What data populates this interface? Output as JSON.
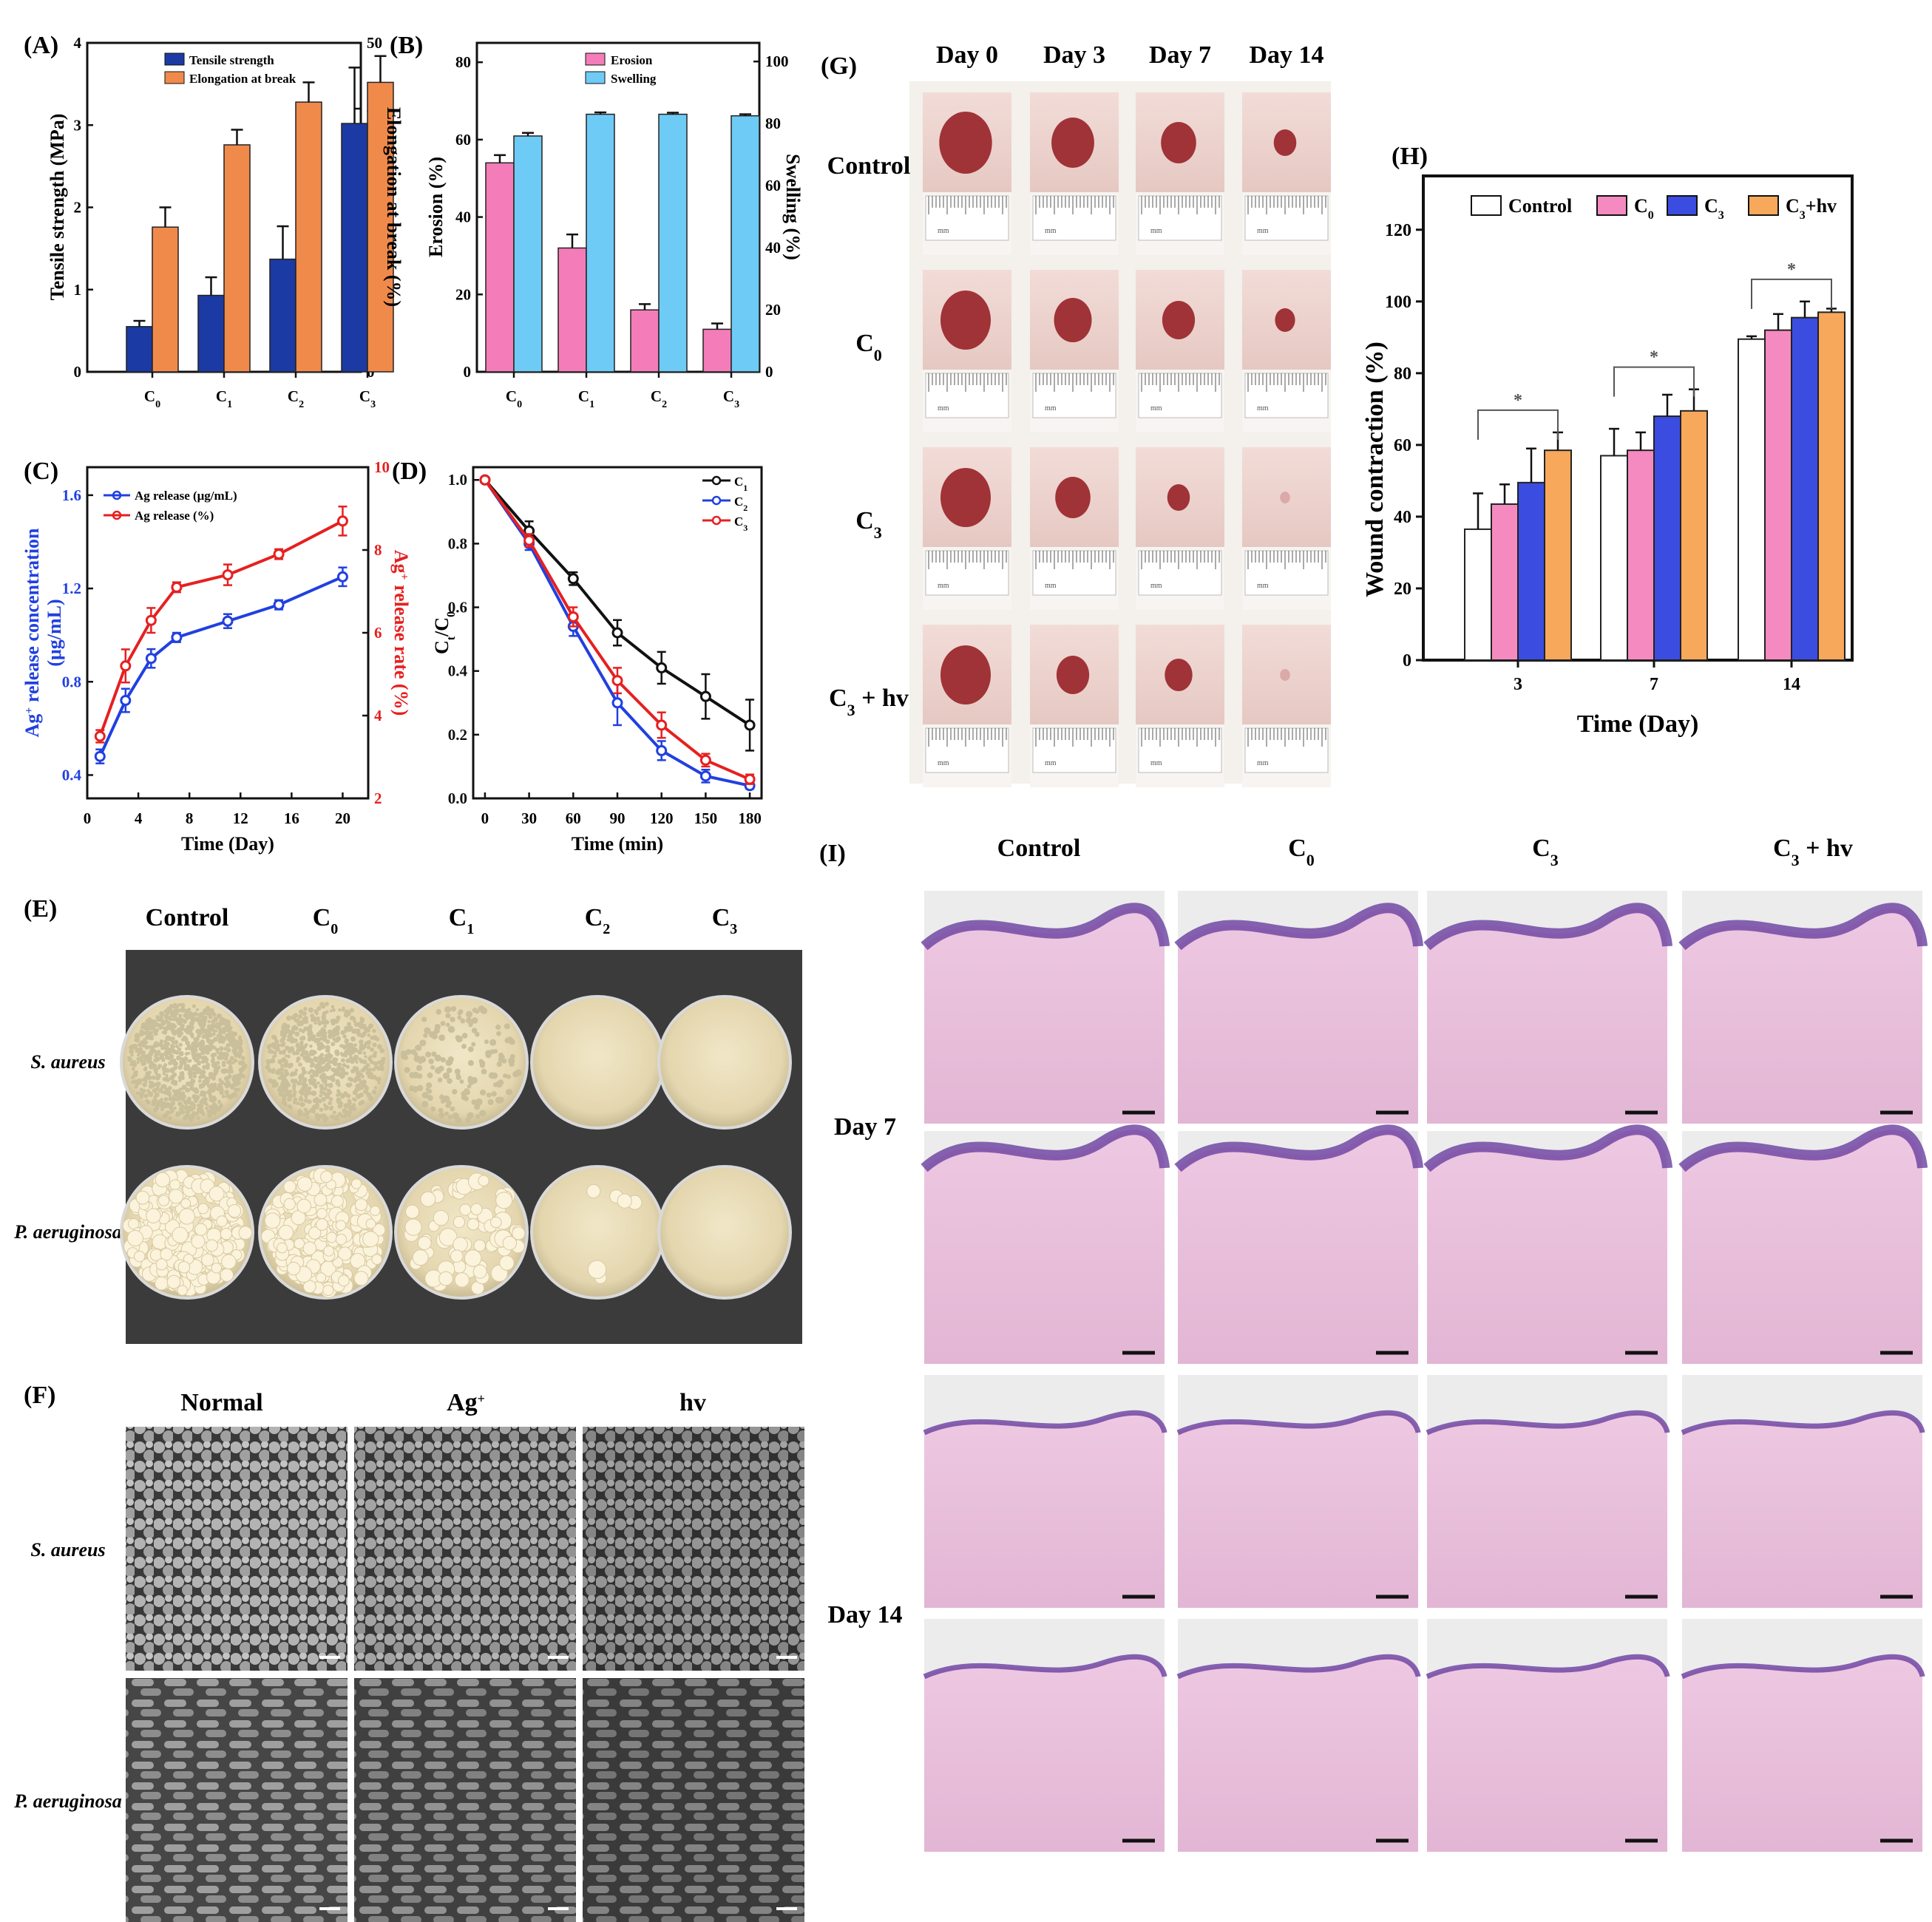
{
  "panel_letters": {
    "A": "(A)",
    "B": "(B)",
    "C": "(C)",
    "D": "(D)",
    "E": "(E)",
    "F": "(F)",
    "G": "(G)",
    "H": "(H)",
    "I": "(I)"
  },
  "colors": {
    "navy": "#1c3aa3",
    "orange": "#f08a4b",
    "pink": "#f47cb8",
    "skyblue": "#6ecbf5",
    "blue": "#2140e0",
    "red": "#e62020",
    "black": "#111111",
    "white": "#ffffff",
    "hpink": "#f58ac0",
    "hblue": "#3a4de0",
    "horange": "#f7a85b"
  },
  "chart_data": [
    {
      "id": "A",
      "type": "bar",
      "title": "",
      "categories": [
        "C0",
        "C1",
        "C2",
        "C3"
      ],
      "category_labels": [
        {
          "base": "C",
          "sub": "0"
        },
        {
          "base": "C",
          "sub": "1"
        },
        {
          "base": "C",
          "sub": "2"
        },
        {
          "base": "C",
          "sub": "3"
        }
      ],
      "ylabel": "Tensile strength (MPa)",
      "ylim": [
        0,
        4
      ],
      "yticks": [
        "0",
        "1",
        "2",
        "3",
        "4"
      ],
      "y2label": "Elongation at break (%)",
      "y2lim": [
        0,
        50
      ],
      "y2ticks": [
        "0",
        "10",
        "20",
        "30",
        "40",
        "50"
      ],
      "series": [
        {
          "name": "Tensile strength",
          "axis": "left",
          "color": "#1c3aa3",
          "values": [
            0.55,
            0.93,
            1.37,
            3.02
          ],
          "errors": [
            0.07,
            0.22,
            0.4,
            0.68
          ]
        },
        {
          "name": "Elongation at break",
          "axis": "right",
          "color": "#f08a4b",
          "values": [
            22,
            34.5,
            41,
            44
          ],
          "errors": [
            3,
            2.3,
            3,
            4
          ]
        }
      ]
    },
    {
      "id": "B",
      "type": "bar",
      "title": "",
      "categories": [
        "C0",
        "C1",
        "C2",
        "C3"
      ],
      "category_labels": [
        {
          "base": "C",
          "sub": "0"
        },
        {
          "base": "C",
          "sub": "1"
        },
        {
          "base": "C",
          "sub": "2"
        },
        {
          "base": "C",
          "sub": "3"
        }
      ],
      "ylabel": "Erosion (%)",
      "ylim": [
        0,
        85
      ],
      "yticks": [
        "0",
        "20",
        "40",
        "60",
        "80"
      ],
      "y2label": "Swelling (%)",
      "y2lim": [
        0,
        106
      ],
      "y2ticks": [
        "0",
        "20",
        "40",
        "60",
        "80",
        "100"
      ],
      "series": [
        {
          "name": "Erosion",
          "axis": "left",
          "color": "#f47cb8",
          "values": [
            54,
            32,
            16,
            11
          ],
          "errors": [
            2,
            3.5,
            1.5,
            1.5
          ]
        },
        {
          "name": "Swelling",
          "axis": "right",
          "color": "#6ecbf5",
          "values": [
            76,
            83,
            83,
            82.5
          ],
          "errors": [
            1,
            0.6,
            0.5,
            0.5
          ]
        }
      ]
    },
    {
      "id": "C",
      "type": "line",
      "title": "",
      "xlabel": "Time (Day)",
      "xlim": [
        0,
        22
      ],
      "xticks": [
        "0",
        "4",
        "8",
        "12",
        "16",
        "20"
      ],
      "ylabel_parts": {
        "base": "Ag",
        "sup": "+",
        "rest": " release concentration",
        "line2": "(μg/mL)"
      },
      "ylim": [
        0.3,
        1.72
      ],
      "yticks": [
        "0.4",
        "0.8",
        "1.2",
        "1.6"
      ],
      "y2label_parts": {
        "base": "Ag",
        "sup": "+",
        "rest": " release rate (%)"
      },
      "y2lim": [
        2,
        10
      ],
      "y2ticks": [
        "2",
        "4",
        "6",
        "8",
        "10"
      ],
      "series": [
        {
          "name": "Ag release  (μg/mL)",
          "axis": "left",
          "color": "#2140e0",
          "x": [
            1,
            3,
            5,
            7,
            11,
            15,
            20
          ],
          "values": [
            0.48,
            0.72,
            0.9,
            0.99,
            1.06,
            1.13,
            1.25
          ],
          "errors": [
            0.03,
            0.05,
            0.04,
            0.02,
            0.03,
            0.02,
            0.04
          ]
        },
        {
          "name": "Ag release (%)",
          "axis": "right",
          "color": "#e62020",
          "x": [
            1,
            3,
            5,
            7,
            11,
            15,
            20
          ],
          "values": [
            3.5,
            5.2,
            6.3,
            7.1,
            7.4,
            7.9,
            8.7
          ],
          "errors": [
            0.15,
            0.4,
            0.3,
            0.12,
            0.25,
            0.12,
            0.35
          ]
        }
      ]
    },
    {
      "id": "D",
      "type": "line",
      "title": "",
      "xlabel": "Time (min)",
      "xlim": [
        -8,
        188
      ],
      "xticks": [
        "0",
        "30",
        "60",
        "90",
        "120",
        "150",
        "180"
      ],
      "ylabel_parts": {
        "base": "C",
        "sub1": "t",
        "mid": "/C",
        "sub2": "0"
      },
      "ylim": [
        0,
        1.04
      ],
      "yticks": [
        "0.0",
        "0.2",
        "0.4",
        "0.6",
        "0.8",
        "1.0"
      ],
      "series": [
        {
          "name": "C1",
          "label": {
            "base": "C",
            "sub": "1"
          },
          "color": "#111111",
          "x": [
            0,
            30,
            60,
            90,
            120,
            150,
            180
          ],
          "values": [
            1,
            0.84,
            0.69,
            0.52,
            0.41,
            0.32,
            0.23
          ],
          "errors": [
            0,
            0.03,
            0.02,
            0.04,
            0.05,
            0.07,
            0.08
          ]
        },
        {
          "name": "C2",
          "label": {
            "base": "C",
            "sub": "2"
          },
          "color": "#2140e0",
          "x": [
            0,
            30,
            60,
            90,
            120,
            150,
            180
          ],
          "values": [
            1,
            0.8,
            0.54,
            0.3,
            0.15,
            0.07,
            0.04
          ],
          "errors": [
            0,
            0.02,
            0.03,
            0.07,
            0.03,
            0.02,
            0.01
          ]
        },
        {
          "name": "C3",
          "label": {
            "base": "C",
            "sub": "3"
          },
          "color": "#e62020",
          "x": [
            0,
            30,
            60,
            90,
            120,
            150,
            180
          ],
          "values": [
            1,
            0.81,
            0.57,
            0.37,
            0.23,
            0.12,
            0.06
          ],
          "errors": [
            0,
            0.02,
            0.03,
            0.04,
            0.04,
            0.02,
            0.015
          ]
        }
      ]
    },
    {
      "id": "H",
      "type": "bar",
      "title": "",
      "categories": [
        "3",
        "7",
        "14"
      ],
      "xlabel": "Time (Day)",
      "ylabel": "Wound contraction (%)",
      "ylim": [
        0,
        135
      ],
      "yticks": [
        "0",
        "20",
        "40",
        "60",
        "80",
        "100",
        "120"
      ],
      "series": [
        {
          "name": "Control",
          "label": {
            "base": "Control",
            "sub": ""
          },
          "color": "#ffffff",
          "values": [
            36.5,
            57,
            89.5
          ],
          "errors": [
            10,
            7.5,
            0.8
          ]
        },
        {
          "name": "C0",
          "label": {
            "base": "C",
            "sub": "0"
          },
          "color": "#f58ac0",
          "values": [
            43.5,
            58.5,
            92
          ],
          "errors": [
            5.5,
            5,
            4.5
          ]
        },
        {
          "name": "C3",
          "label": {
            "base": "C",
            "sub": "3"
          },
          "color": "#3a4de0",
          "values": [
            49.5,
            68,
            95.5
          ],
          "errors": [
            9.5,
            6,
            4.5
          ]
        },
        {
          "name": "C3+hv",
          "label": {
            "base": "C",
            "sub": "3",
            "rest": "+hv"
          },
          "color": "#f7a85b",
          "values": [
            58.5,
            69.5,
            97
          ],
          "errors": [
            5,
            6,
            1
          ]
        }
      ],
      "significance": [
        "*",
        "*",
        "*"
      ]
    }
  ],
  "panel_E": {
    "columns": [
      {
        "base": "Control",
        "sub": ""
      },
      {
        "base": "C",
        "sub": "0"
      },
      {
        "base": "C",
        "sub": "1"
      },
      {
        "base": "C",
        "sub": "2"
      },
      {
        "base": "C",
        "sub": "3"
      }
    ],
    "rows": [
      "S. aureus",
      "P. aeruginosa"
    ]
  },
  "panel_F": {
    "columns": [
      {
        "base": "Normal",
        "sup": ""
      },
      {
        "base": "Ag",
        "sup": "+"
      },
      {
        "base": "hv",
        "sup": ""
      }
    ],
    "rows": [
      "S. aureus",
      "P. aeruginosa"
    ]
  },
  "panel_G": {
    "columns": [
      "Day 0",
      "Day 3",
      "Day 7",
      "Day 14"
    ],
    "rows": [
      {
        "base": "Control",
        "sub": ""
      },
      {
        "base": "C",
        "sub": "0"
      },
      {
        "base": "C",
        "sub": "3"
      },
      {
        "base": "C",
        "sub": "3",
        "rest": " + hv"
      }
    ],
    "ruler_text": "mm"
  },
  "panel_I": {
    "columns": [
      {
        "base": "Control",
        "sub": ""
      },
      {
        "base": "C",
        "sub": "0"
      },
      {
        "base": "C",
        "sub": "3"
      },
      {
        "base": "C",
        "sub": "3",
        "rest": " + hv"
      }
    ],
    "rows": [
      "Day 7",
      "Day 14"
    ]
  }
}
